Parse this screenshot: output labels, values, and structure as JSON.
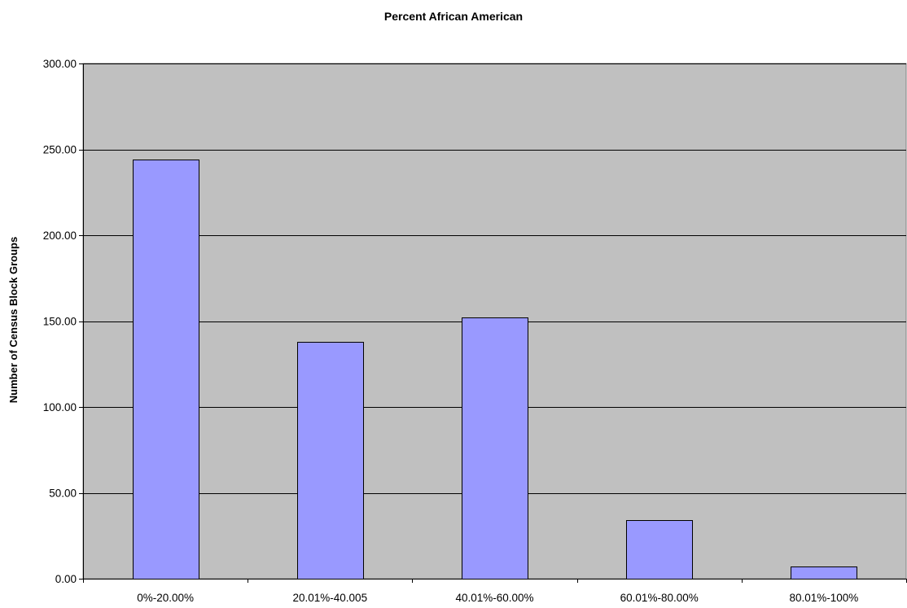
{
  "chart_data": {
    "type": "bar",
    "title": "Percent African American",
    "xlabel": "",
    "ylabel": "Number of Census Block Groups",
    "categories": [
      "0%-20.00%",
      "20.01%-40.005",
      "40.01%-60.00%",
      "60.01%-80.00%",
      "80.01%-100%"
    ],
    "values": [
      244,
      138,
      152,
      34,
      7
    ],
    "ylim": [
      0,
      300
    ],
    "yticks": [
      "0.00",
      "50.00",
      "100.00",
      "150.00",
      "200.00",
      "250.00",
      "300.00"
    ],
    "grid": true,
    "legend": "none",
    "colors": {
      "plot_background": "#c0c0c0",
      "bar_fill": "#9999ff",
      "bar_stroke": "#000000",
      "gridline": "#000000"
    }
  }
}
